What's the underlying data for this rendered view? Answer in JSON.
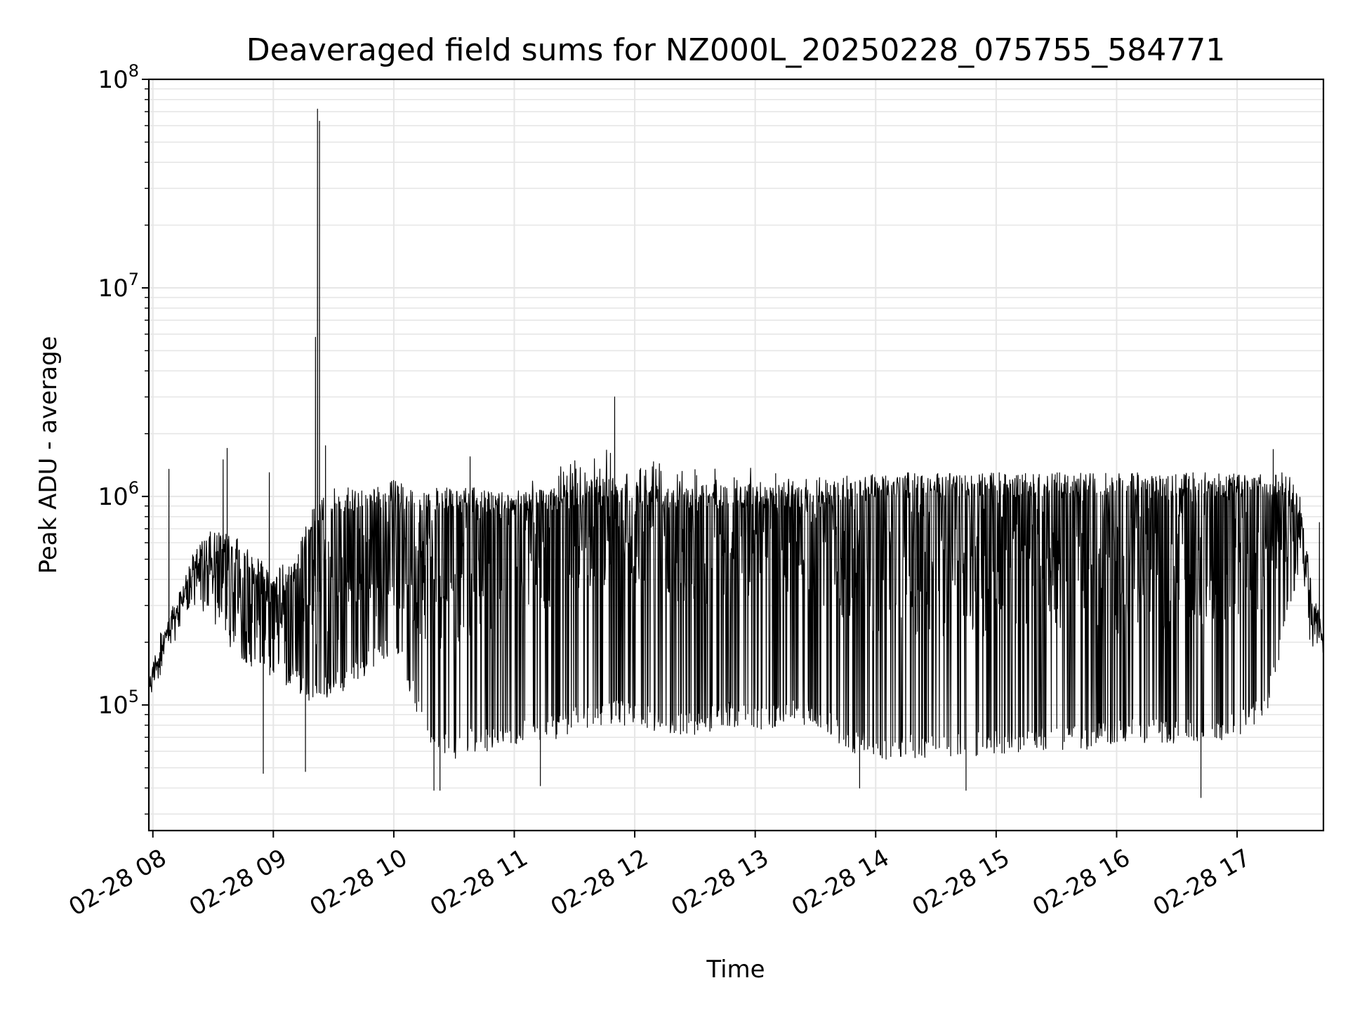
{
  "chart_data": {
    "type": "line",
    "title": "Deaveraged field sums for NZ000L_20250228_075755_584771",
    "xlabel": "Time",
    "ylabel": "Peak ADU - average",
    "yscale": "log",
    "ylim": [
      25000,
      100000000
    ],
    "xlim": [
      "2025-02-28 07:58",
      "2025-02-28 17:43"
    ],
    "grid": true,
    "line_color": "#000000",
    "grid_color": "#e6e6e6",
    "x_ticks": [
      "2025-02-28 08:00",
      "2025-02-28 09:00",
      "2025-02-28 10:00",
      "2025-02-28 11:00",
      "2025-02-28 12:00",
      "2025-02-28 13:00",
      "2025-02-28 14:00",
      "2025-02-28 15:00",
      "2025-02-28 16:00",
      "2025-02-28 17:00"
    ],
    "x_tick_labels": [
      "02-28 08",
      "02-28 09",
      "02-28 10",
      "02-28 11",
      "02-28 12",
      "02-28 13",
      "02-28 14",
      "02-28 15",
      "02-28 16",
      "02-28 17"
    ],
    "y_ticks": [
      100000,
      1000000,
      10000000,
      100000000
    ],
    "y_tick_labels": [
      {
        "base": "10",
        "exp": "5"
      },
      {
        "base": "10",
        "exp": "6"
      },
      {
        "base": "10",
        "exp": "7"
      },
      {
        "base": "10",
        "exp": "8"
      }
    ],
    "series": [
      {
        "envelope": {
          "x": [
            "2025-02-28 07:58",
            "2025-02-28 08:05",
            "2025-02-28 08:12",
            "2025-02-28 08:20",
            "2025-02-28 08:30",
            "2025-02-28 08:40",
            "2025-02-28 08:50",
            "2025-02-28 09:00",
            "2025-02-28 09:10",
            "2025-02-28 09:20",
            "2025-02-28 09:30",
            "2025-02-28 09:40",
            "2025-02-28 09:50",
            "2025-02-28 10:00",
            "2025-02-28 10:10",
            "2025-02-28 10:20",
            "2025-02-28 10:30",
            "2025-02-28 10:40",
            "2025-02-28 10:50",
            "2025-02-28 11:00",
            "2025-02-28 11:15",
            "2025-02-28 11:30",
            "2025-02-28 11:45",
            "2025-02-28 12:00",
            "2025-02-28 12:15",
            "2025-02-28 12:30",
            "2025-02-28 12:45",
            "2025-02-28 13:00",
            "2025-02-28 13:15",
            "2025-02-28 13:30",
            "2025-02-28 13:45",
            "2025-02-28 14:00",
            "2025-02-28 14:20",
            "2025-02-28 14:40",
            "2025-02-28 15:00",
            "2025-02-28 15:20",
            "2025-02-28 15:40",
            "2025-02-28 16:00",
            "2025-02-28 16:20",
            "2025-02-28 16:40",
            "2025-02-28 17:00",
            "2025-02-28 17:15",
            "2025-02-28 17:25",
            "2025-02-28 17:32",
            "2025-02-28 17:36",
            "2025-02-28 17:43"
          ],
          "high": [
            150000,
            250000,
            320000,
            550000,
            700000,
            650000,
            550000,
            450000,
            500000,
            900000,
            1100000,
            1100000,
            1100000,
            1200000,
            1100000,
            1100000,
            1100000,
            1100000,
            1050000,
            1100000,
            1100000,
            1150000,
            1250000,
            1200000,
            1150000,
            1150000,
            1150000,
            1150000,
            1150000,
            1100000,
            1250000,
            1300000,
            1300000,
            1300000,
            1300000,
            1300000,
            1300000,
            1300000,
            1300000,
            1300000,
            1300000,
            1300000,
            1300000,
            1000000,
            450000,
            220000
          ],
          "mid": [
            120000,
            200000,
            280000,
            450000,
            420000,
            350000,
            300000,
            280000,
            300000,
            350000,
            350000,
            400000,
            450000,
            500000,
            450000,
            400000,
            450000,
            450000,
            500000,
            550000,
            600000,
            700000,
            800000,
            750000,
            700000,
            650000,
            650000,
            650000,
            650000,
            600000,
            550000,
            500000,
            500000,
            500000,
            500000,
            500000,
            500000,
            500000,
            500000,
            500000,
            550000,
            550000,
            650000,
            700000,
            300000,
            200000
          ],
          "low": [
            100000,
            150000,
            200000,
            300000,
            250000,
            180000,
            150000,
            130000,
            120000,
            100000,
            110000,
            120000,
            150000,
            180000,
            100000,
            60000,
            55000,
            60000,
            60000,
            65000,
            65000,
            75000,
            80000,
            80000,
            70000,
            70000,
            80000,
            75000,
            80000,
            80000,
            60000,
            55000,
            55000,
            55000,
            58000,
            60000,
            60000,
            65000,
            65000,
            65000,
            70000,
            90000,
            250000,
            450000,
            190000,
            190000
          ]
        },
        "spikes": [
          {
            "x": "2025-02-28 08:08",
            "y": 1350000
          },
          {
            "x": "2025-02-28 08:35",
            "y": 1500000
          },
          {
            "x": "2025-02-28 08:37",
            "y": 1700000
          },
          {
            "x": "2025-02-28 08:58",
            "y": 1300000
          },
          {
            "x": "2025-02-28 09:21",
            "y": 5800000
          },
          {
            "x": "2025-02-28 09:22",
            "y": 72000000
          },
          {
            "x": "2025-02-28 09:23",
            "y": 63000000
          },
          {
            "x": "2025-02-28 09:26",
            "y": 1750000
          },
          {
            "x": "2025-02-28 10:38",
            "y": 1550000
          },
          {
            "x": "2025-02-28 11:50",
            "y": 3000000
          },
          {
            "x": "2025-02-28 17:18",
            "y": 1680000
          },
          {
            "x": "2025-02-28 17:41",
            "y": 750000
          }
        ],
        "dips": [
          {
            "x": "2025-02-28 08:55",
            "y": 47000
          },
          {
            "x": "2025-02-28 09:16",
            "y": 48000
          },
          {
            "x": "2025-02-28 10:20",
            "y": 39000
          },
          {
            "x": "2025-02-28 10:23",
            "y": 39000
          },
          {
            "x": "2025-02-28 11:13",
            "y": 41000
          },
          {
            "x": "2025-02-28 13:52",
            "y": 40000
          },
          {
            "x": "2025-02-28 14:45",
            "y": 39000
          },
          {
            "x": "2025-02-28 16:42",
            "y": 36000
          }
        ]
      }
    ]
  }
}
